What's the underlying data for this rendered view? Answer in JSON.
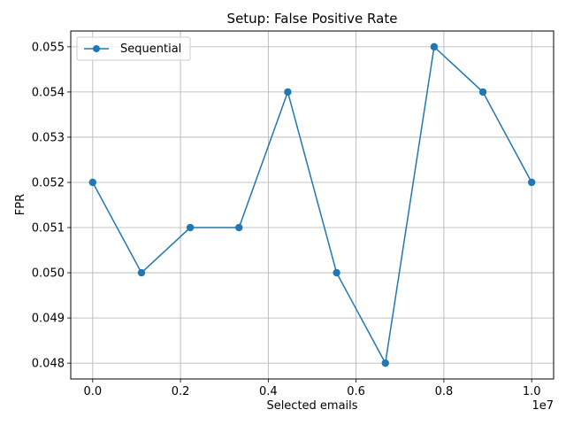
{
  "chart_data": {
    "type": "line",
    "title": "Setup: False Positive Rate",
    "xlabel": "Selected emails",
    "ylabel": "FPR",
    "x_offset_label": "1e7",
    "x_ticks": [
      "0.0",
      "0.2",
      "0.4",
      "0.6",
      "0.8",
      "1.0"
    ],
    "y_ticks": [
      "0.048",
      "0.049",
      "0.050",
      "0.051",
      "0.052",
      "0.053",
      "0.054",
      "0.055"
    ],
    "xlim": [
      -0.05,
      1.05
    ],
    "ylim": [
      0.04765,
      0.05535
    ],
    "grid": true,
    "legend_position": "upper left",
    "color": "#1f77b4",
    "series": [
      {
        "name": "Sequential",
        "x": [
          0.0,
          0.1111,
          0.2222,
          0.3333,
          0.4444,
          0.5556,
          0.6667,
          0.7778,
          0.8889,
          1.0
        ],
        "values": [
          0.052,
          0.05,
          0.051,
          0.051,
          0.054,
          0.05,
          0.048,
          0.055,
          0.054,
          0.052
        ]
      }
    ]
  }
}
